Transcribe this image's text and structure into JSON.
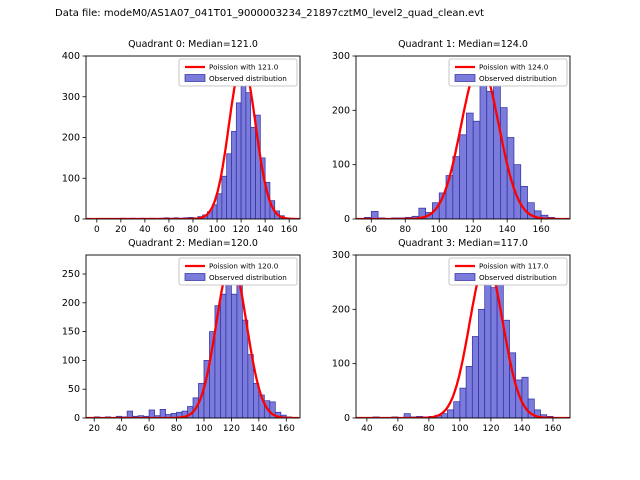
{
  "figure": {
    "suptitle": "Data file: modeM0/AS1A07_041T01_9000003234_21897cztM0_level2_quad_clean.evt"
  },
  "chart_data": {
    "type": "bar",
    "subtype": "histogram-with-fit-curve",
    "layout": "2x2 grid",
    "grid": false,
    "legend_position": "upper right",
    "colors": {
      "curve": "#ff0000",
      "bar_fill": "#7b7bdb",
      "bar_edge": "#2d2da0",
      "legend_edge": "#b8b8b8"
    },
    "plots": [
      {
        "title": "Quadrant 0: Median=121.0",
        "median": 121.0,
        "legend": [
          "Poission with 121.0",
          "Observed distribution"
        ],
        "xlim": [
          -9,
          169
        ],
        "ylim": [
          0,
          400
        ],
        "xticks": [
          0,
          20,
          40,
          60,
          80,
          100,
          120,
          140,
          160
        ],
        "yticks": [
          0,
          100,
          200,
          300,
          400
        ],
        "hist": {
          "bin_start": 0,
          "bin_width": 4,
          "counts": [
            0,
            0,
            0,
            0,
            0,
            2,
            1,
            2,
            1,
            2,
            1,
            2,
            1,
            2,
            3,
            2,
            3,
            2,
            3,
            4,
            3,
            6,
            10,
            18,
            35,
            62,
            105,
            160,
            215,
            285,
            390,
            310,
            225,
            255,
            150,
            90,
            45,
            20,
            8,
            3,
            1
          ]
        },
        "curve": {
          "model": "poisson-fit",
          "mu": 121,
          "sigma": 11.0,
          "peak": 385
        }
      },
      {
        "title": "Quadrant 1: Median=124.0",
        "median": 124.0,
        "legend": [
          "Poission with 124.0",
          "Observed distribution"
        ],
        "xlim": [
          51,
          177
        ],
        "ylim": [
          0,
          300
        ],
        "xticks": [
          60,
          80,
          100,
          120,
          140,
          160
        ],
        "yticks": [
          0,
          100,
          200,
          300
        ],
        "hist": {
          "bin_start": 56,
          "bin_width": 4,
          "counts": [
            3,
            14,
            2,
            1,
            2,
            2,
            3,
            5,
            20,
            12,
            30,
            48,
            80,
            115,
            155,
            195,
            180,
            285,
            235,
            285,
            205,
            150,
            100,
            60,
            30,
            15,
            7,
            3,
            1
          ]
        },
        "curve": {
          "model": "poisson-fit",
          "mu": 124,
          "sigma": 11.1,
          "peak": 285
        }
      },
      {
        "title": "Quadrant 2: Median=120.0",
        "median": 120.0,
        "legend": [
          "Poission with 120.0",
          "Observed distribution"
        ],
        "xlim": [
          14,
          170
        ],
        "ylim": [
          0,
          283
        ],
        "xticks": [
          20,
          40,
          60,
          80,
          100,
          120,
          140,
          160
        ],
        "yticks": [
          0,
          50,
          100,
          150,
          200,
          250
        ],
        "hist": {
          "bin_start": 20,
          "bin_width": 4,
          "counts": [
            2,
            1,
            2,
            1,
            3,
            2,
            12,
            3,
            4,
            3,
            14,
            4,
            15,
            6,
            8,
            10,
            12,
            20,
            35,
            60,
            100,
            150,
            195,
            215,
            275,
            215,
            260,
            170,
            110,
            60,
            40,
            30,
            28,
            10,
            5,
            2
          ]
        },
        "curve": {
          "model": "poisson-fit",
          "mu": 120,
          "sigma": 11.0,
          "peak": 272
        }
      },
      {
        "title": "Quadrant 3: Median=117.0",
        "median": 117.0,
        "legend": [
          "Poission with 117.0",
          "Observed distribution"
        ],
        "xlim": [
          33,
          171
        ],
        "ylim": [
          0,
          300
        ],
        "xticks": [
          40,
          60,
          80,
          100,
          120,
          140,
          160
        ],
        "yticks": [
          0,
          100,
          200,
          300
        ],
        "hist": {
          "bin_start": 40,
          "bin_width": 4,
          "counts": [
            1,
            2,
            1,
            0,
            2,
            1,
            8,
            2,
            3,
            2,
            3,
            5,
            8,
            15,
            30,
            55,
            95,
            150,
            200,
            290,
            240,
            255,
            180,
            120,
            70,
            75,
            35,
            15,
            6,
            3,
            1
          ]
        },
        "curve": {
          "model": "poisson-fit",
          "mu": 117,
          "sigma": 10.8,
          "peak": 287
        }
      }
    ]
  }
}
